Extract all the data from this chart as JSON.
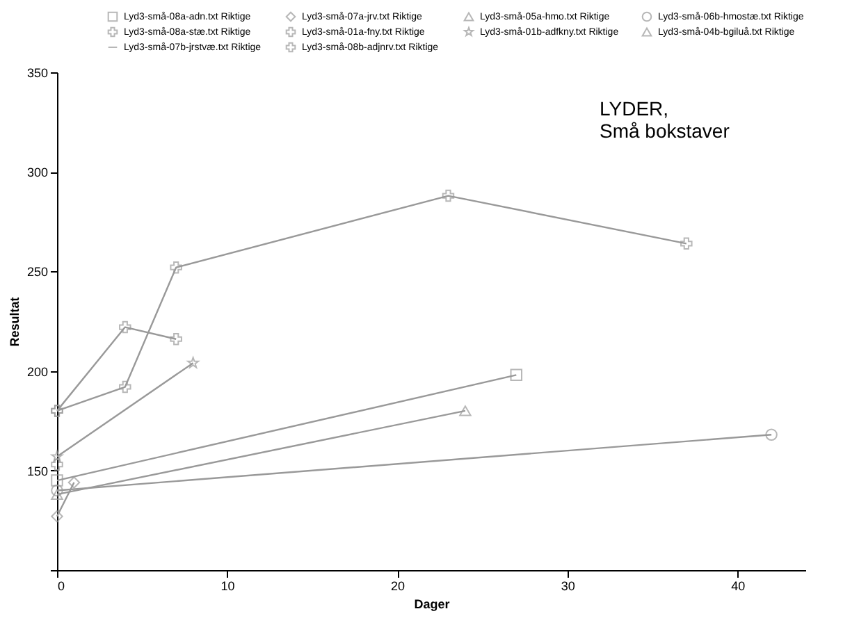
{
  "chart_data": {
    "type": "line",
    "xlabel": "Dager",
    "ylabel": "Resultat",
    "xlim": [
      0,
      44
    ],
    "xticks": [
      0,
      10,
      20,
      30,
      40
    ],
    "ylim": [
      100,
      350
    ],
    "yticks": [
      {
        "value": 100,
        "label": null
      },
      150,
      200,
      250,
      300,
      350
    ],
    "grid": false,
    "legend": "top",
    "annotations": [
      "LYDER,\nSmå bokstaver"
    ],
    "series": [
      {
        "name": "Lyd3-små-08a-adn.txt Riktige",
        "color": "#999999",
        "marker": "square",
        "x": [
          0,
          27
        ],
        "values": [
          145,
          198
        ]
      },
      {
        "name": "Lyd3-små-07a-jrv.txt Riktige",
        "color": "#999999",
        "marker": "diamond",
        "x": [
          0,
          1
        ],
        "values": [
          127,
          144
        ]
      },
      {
        "name": "Lyd3-små-05a-hmo.txt Riktige",
        "color": "#999999",
        "marker": "triangle",
        "x": [
          0,
          24
        ],
        "values": [
          138,
          180
        ]
      },
      {
        "name": "Lyd3-små-06b-hmostæ.txt Riktige",
        "color": "#999999",
        "marker": "circle",
        "x": [
          0,
          42
        ],
        "values": [
          140,
          168
        ]
      },
      {
        "name": "Lyd3-små-08a-stæ.txt Riktige",
        "color": "#999999",
        "marker": "cross",
        "x": [
          0
        ],
        "values": [
          153
        ]
      },
      {
        "name": "Lyd3-små-01a-fny.txt Riktige",
        "color": "#999999",
        "marker": "cross",
        "x": [
          0,
          4,
          7
        ],
        "values": [
          180,
          222,
          216
        ]
      },
      {
        "name": "Lyd3-små-01b-adfkny.txt Riktige",
        "color": "#999999",
        "marker": "star",
        "x": [
          0,
          8
        ],
        "values": [
          157,
          204
        ]
      },
      {
        "name": "Lyd3-små-04b-bgiluå.txt Riktige",
        "color": "#999999",
        "marker": "triangle"
      },
      {
        "name": "Lyd3-små-07b-jrstvæ.txt Riktige",
        "color": "#999999",
        "marker": "none"
      },
      {
        "name": "Lyd3-små-08b-adjnrv.txt Riktige",
        "color": "#999999",
        "marker": "cross",
        "x": [
          0,
          4,
          7,
          23,
          37
        ],
        "values": [
          180,
          192,
          252,
          288,
          264
        ]
      }
    ]
  }
}
